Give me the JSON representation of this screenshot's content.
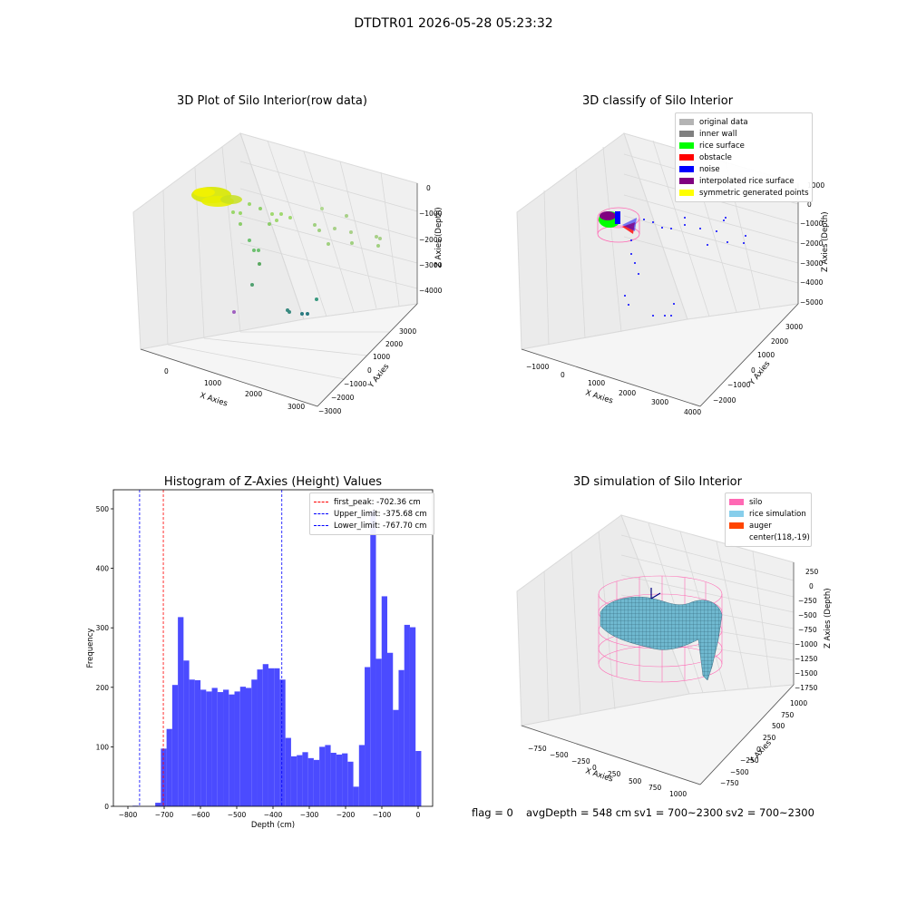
{
  "figure": {
    "suptitle": "DTDTR01 2026-05-28 05:23:32",
    "footer": {
      "flag": "flag = 0",
      "avg_depth": "avgDepth = 548 cm",
      "sv1": "sv1 = 700~2300",
      "sv2": "sv2 = 700~2300"
    }
  },
  "panels": {
    "raw": {
      "title": "3D Plot of Silo Interior(row data)",
      "xlabel": "X Axies",
      "ylabel": "Y Axies",
      "zlabel": "Z Axies (Depth)",
      "xticks": [
        "0",
        "1000",
        "2000",
        "3000"
      ],
      "yticks": [
        "3000",
        "2000",
        "1000",
        "0",
        "−1000",
        "−2000",
        "−3000"
      ],
      "zticks": [
        "0",
        "−1000",
        "−2000",
        "−3000",
        "−4000"
      ]
    },
    "classify": {
      "title": "3D classify of Silo Interior",
      "xlabel": "X Axies",
      "ylabel": "Y Axies",
      "zlabel": "Z Axies (Depth)",
      "xticks": [
        "−1000",
        "0",
        "1000",
        "2000",
        "3000",
        "4000"
      ],
      "yticks": [
        "3000",
        "2000",
        "1000",
        "0",
        "−1000",
        "−2000"
      ],
      "zticks": [
        "1000",
        "0",
        "−1000",
        "−2000",
        "−3000",
        "−4000",
        "−5000"
      ],
      "legend": [
        {
          "label": "original data",
          "color": "#b4b4b4"
        },
        {
          "label": "inner wall",
          "color": "#808080"
        },
        {
          "label": "rice surface",
          "color": "#00ff00"
        },
        {
          "label": "obstacle",
          "color": "#ff0000"
        },
        {
          "label": "noise",
          "color": "#0000ff"
        },
        {
          "label": "interpolated rice surface",
          "color": "#800080"
        },
        {
          "label": "symmetric generated points",
          "color": "#ffff00"
        }
      ]
    },
    "simulation": {
      "title": "3D simulation of Silo Interior",
      "xlabel": "X Axies",
      "ylabel": "Y Axies",
      "zlabel": "Z Axies (Depth)",
      "xticks": [
        "−750",
        "−500",
        "−250",
        "0",
        "250",
        "500",
        "750",
        "1000"
      ],
      "yticks": [
        "1000",
        "750",
        "500",
        "250",
        "0",
        "−250",
        "−500",
        "−750"
      ],
      "zticks": [
        "250",
        "0",
        "−250",
        "−500",
        "−750",
        "−1000",
        "−1250",
        "−1500",
        "−1750"
      ],
      "legend": [
        {
          "label": "silo",
          "color": "#ff69b4"
        },
        {
          "label": "rice simulation",
          "color": "#87ceeb"
        },
        {
          "label": "auger",
          "color": "#ff4500"
        },
        {
          "label": "center(118,-19)",
          "color": ""
        }
      ]
    }
  },
  "chart_data": {
    "type": "bar",
    "title": "Histogram of Z-Axies (Height) Values",
    "xlabel": "Depth (cm)",
    "ylabel": "Frequency",
    "xlim": [
      -840,
      40
    ],
    "ylim": [
      0,
      532
    ],
    "xticks": [
      -800,
      -700,
      -600,
      -500,
      -400,
      -300,
      -200,
      -100,
      0
    ],
    "yticks": [
      0,
      100,
      200,
      300,
      400,
      500
    ],
    "bar_color": "#4b4bff",
    "bin_start": -787,
    "bin_width": 15.6,
    "values": [
      1,
      0,
      0,
      0,
      6,
      97,
      130,
      204,
      318,
      245,
      213,
      212,
      196,
      193,
      199,
      192,
      196,
      188,
      193,
      201,
      199,
      213,
      230,
      239,
      232,
      232,
      213,
      115,
      84,
      86,
      91,
      81,
      78,
      100,
      103,
      90,
      87,
      89,
      75,
      33,
      103,
      234,
      497,
      248,
      353,
      258,
      162,
      229,
      305,
      301,
      93
    ],
    "vlines": [
      {
        "label": "first_peak: -702.36 cm",
        "x": -702.36,
        "color": "#ff0000"
      },
      {
        "label": "Upper_limit: -375.68 cm",
        "x": -375.68,
        "color": "#0000ff"
      },
      {
        "label": "Lower_limit: -767.70 cm",
        "x": -767.7,
        "color": "#0000ff"
      }
    ],
    "legend_position": "top-right"
  }
}
